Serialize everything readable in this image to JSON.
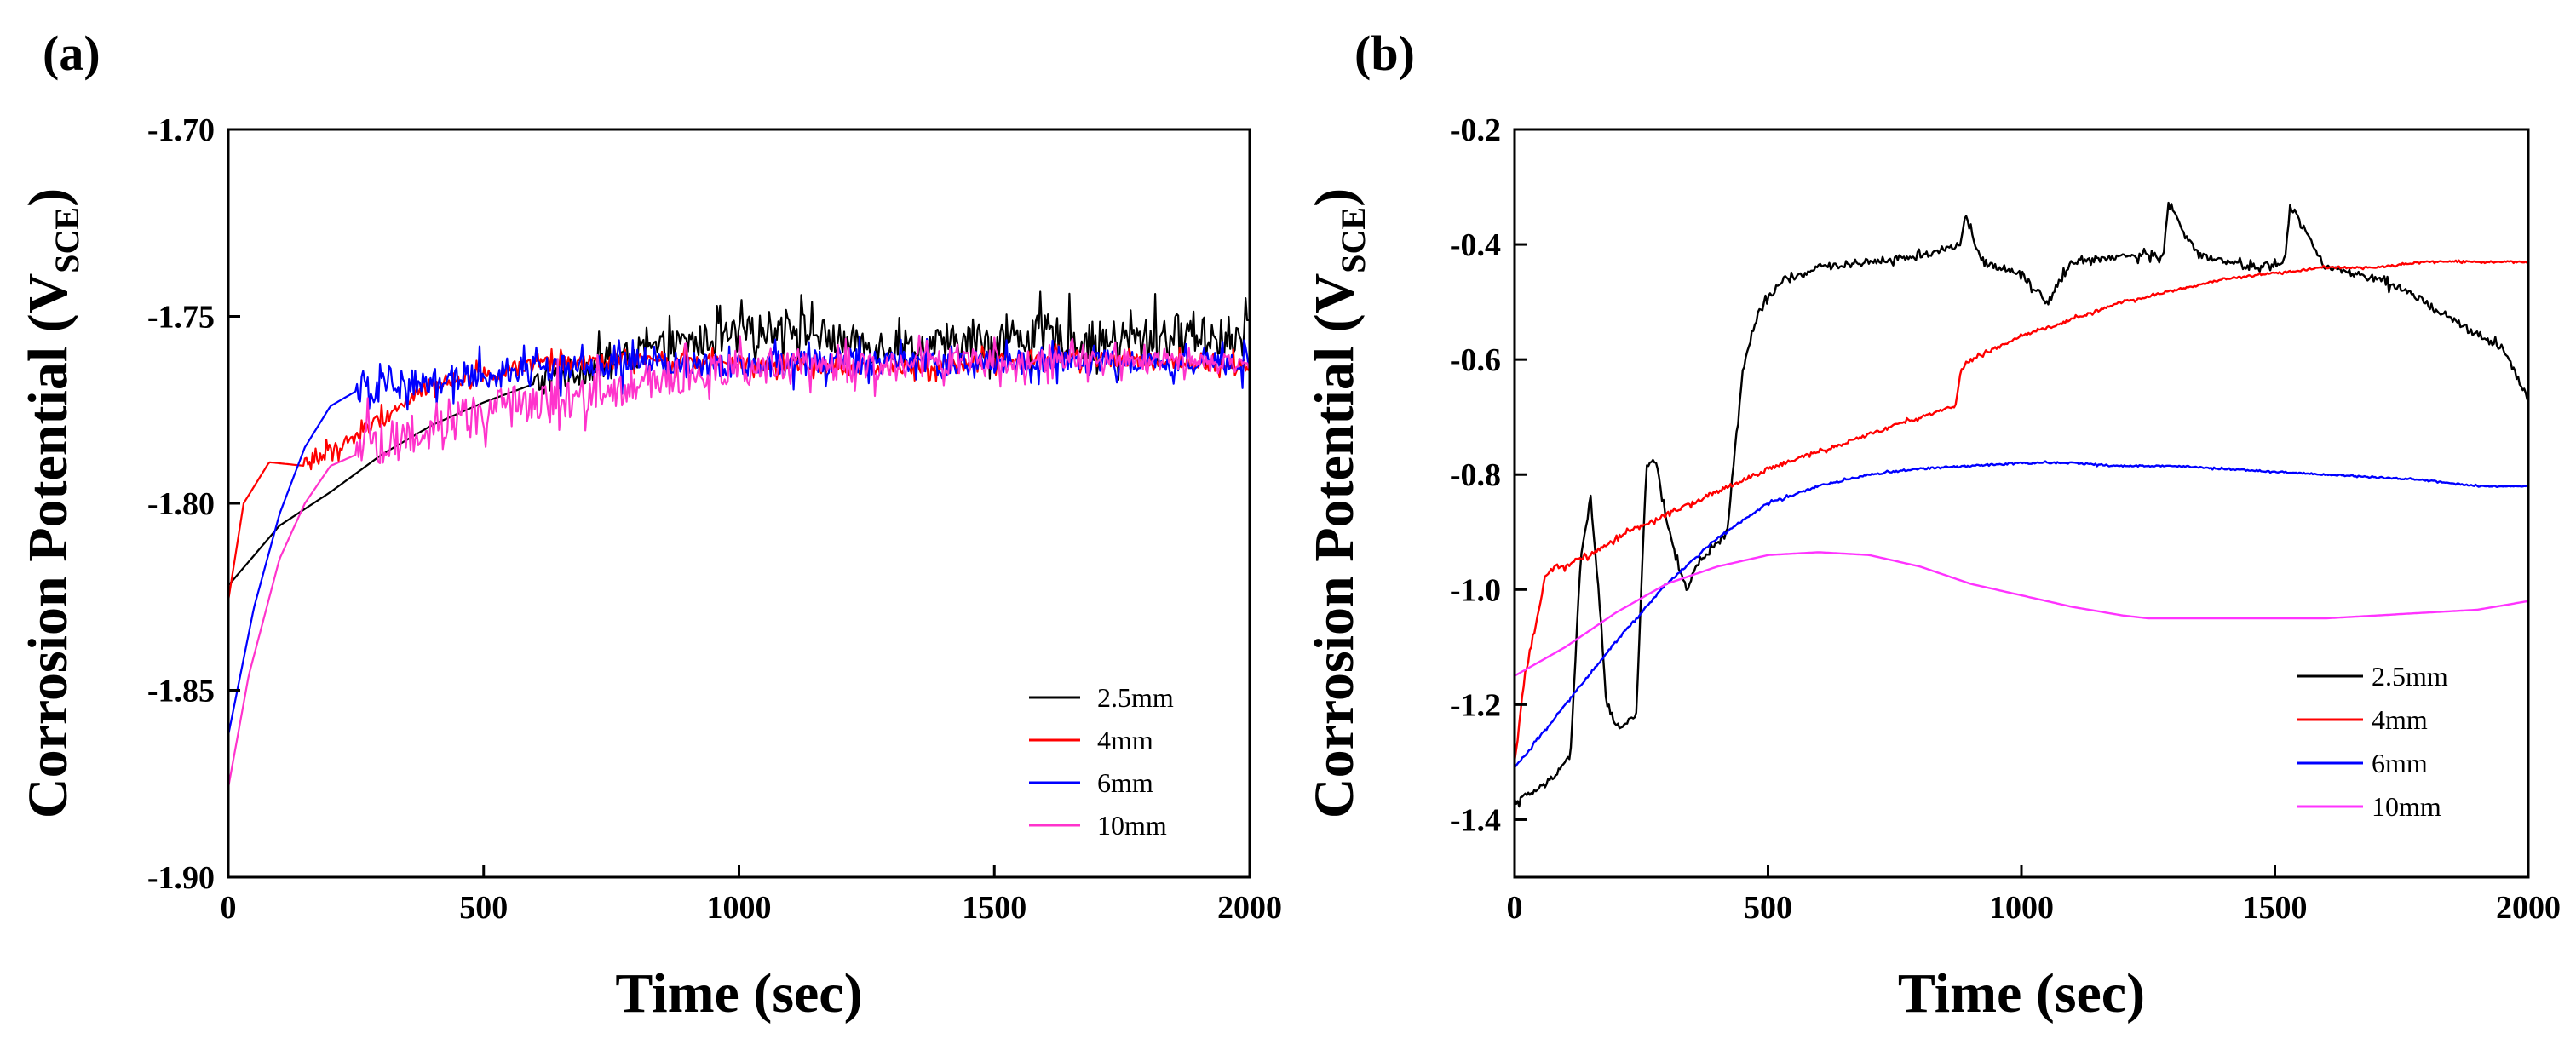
{
  "chart_data": [
    {
      "panel_label": "(a)",
      "type": "line",
      "title": "",
      "xlabel": "Time (sec)",
      "ylabel": "Corrosion Potential (V",
      "ylabel_subscript": "SCE",
      "ylabel_close": ")",
      "xlim": [
        0,
        2000
      ],
      "ylim": [
        -1.9,
        -1.7
      ],
      "x_ticks": [
        0,
        500,
        1000,
        1500,
        2000
      ],
      "x_tick_labels": [
        "0",
        "500",
        "1000",
        "1500",
        "2000"
      ],
      "y_ticks": [
        -1.7,
        -1.75,
        -1.8,
        -1.85,
        -1.9
      ],
      "y_tick_labels": [
        "-1.70",
        "-1.75",
        "-1.80",
        "-1.85",
        "-1.90"
      ],
      "grid": false,
      "legend_position": "bottom-right",
      "series": [
        {
          "name": "2.5mm",
          "color": "#000000",
          "noise": 0.003,
          "noise_start": 600,
          "noise_late": 0.006,
          "x": [
            0,
            100,
            200,
            300,
            400,
            500,
            600,
            700,
            800,
            900,
            1000,
            1100,
            1200,
            1300,
            1400,
            1500,
            1600,
            1700,
            1800,
            1900,
            2000
          ],
          "y": [
            -1.822,
            -1.806,
            -1.797,
            -1.787,
            -1.779,
            -1.773,
            -1.768,
            -1.764,
            -1.76,
            -1.757,
            -1.755,
            -1.752,
            -1.757,
            -1.758,
            -1.758,
            -1.756,
            -1.755,
            -1.757,
            -1.756,
            -1.754,
            -1.757
          ]
        },
        {
          "name": "4mm",
          "color": "#ff0000",
          "noise": 0.002,
          "noise_start": 150,
          "noise_late": 0.002,
          "x": [
            0,
            30,
            80,
            150,
            250,
            400,
            600,
            800,
            1000,
            1200,
            1400,
            1600,
            1800,
            2000
          ],
          "y": [
            -1.826,
            -1.8,
            -1.789,
            -1.79,
            -1.782,
            -1.768,
            -1.763,
            -1.762,
            -1.762,
            -1.764,
            -1.763,
            -1.761,
            -1.762,
            -1.763
          ]
        },
        {
          "name": "6mm",
          "color": "#0000ff",
          "noise": 0.004,
          "noise_start": 250,
          "noise_late": 0.003,
          "x": [
            0,
            50,
            100,
            150,
            200,
            250,
            400,
            600,
            800,
            1000,
            1200,
            1400,
            1600,
            1800,
            2000
          ],
          "y": [
            -1.862,
            -1.828,
            -1.803,
            -1.785,
            -1.774,
            -1.77,
            -1.767,
            -1.764,
            -1.763,
            -1.763,
            -1.762,
            -1.763,
            -1.762,
            -1.762,
            -1.763
          ]
        },
        {
          "name": "10mm",
          "color": "#ff33cc",
          "noise": 0.007,
          "noise_start": 250,
          "noise_late": 0.002,
          "x": [
            0,
            40,
            100,
            150,
            200,
            300,
            400,
            600,
            800,
            1000,
            1200,
            1400,
            1600,
            1800,
            2000
          ],
          "y": [
            -1.876,
            -1.846,
            -1.815,
            -1.8,
            -1.79,
            -1.784,
            -1.779,
            -1.773,
            -1.768,
            -1.764,
            -1.764,
            -1.762,
            -1.762,
            -1.762,
            -1.763
          ]
        }
      ]
    },
    {
      "panel_label": "(b)",
      "type": "line",
      "title": "",
      "xlabel": "Time (sec)",
      "ylabel": "Corrosion Potential (V",
      "ylabel_subscript": "SCE",
      "ylabel_close": ")",
      "xlim": [
        0,
        2000
      ],
      "ylim": [
        -1.5,
        -0.2
      ],
      "x_ticks": [
        0,
        500,
        1000,
        1500,
        2000
      ],
      "x_tick_labels": [
        "0",
        "500",
        "1000",
        "1500",
        "2000"
      ],
      "y_ticks": [
        -0.2,
        -0.4,
        -0.6,
        -0.8,
        -1.0,
        -1.2,
        -1.4
      ],
      "y_tick_labels": [
        "-0.2",
        "-0.4",
        "-0.6",
        "-0.8",
        "-1.0",
        "-1.2",
        "-1.4"
      ],
      "grid": false,
      "legend_position": "bottom-right",
      "series": [
        {
          "name": "2.5mm",
          "color": "#000000",
          "noise": 0.006,
          "noise_start": 0,
          "noise_late": 0.006,
          "x": [
            0,
            60,
            110,
            130,
            150,
            170,
            180,
            200,
            240,
            260,
            280,
            300,
            320,
            340,
            360,
            400,
            420,
            430,
            450,
            480,
            520,
            600,
            700,
            800,
            880,
            890,
            920,
            1000,
            1050,
            1100,
            1200,
            1280,
            1290,
            1350,
            1450,
            1520,
            1530,
            1600,
            1700,
            1800,
            1900,
            1950,
            2000
          ],
          "y": [
            -1.37,
            -1.34,
            -1.29,
            -0.95,
            -0.84,
            -1.05,
            -1.19,
            -1.24,
            -1.22,
            -0.78,
            -0.78,
            -0.88,
            -0.95,
            -1.0,
            -0.96,
            -0.92,
            -0.9,
            -0.8,
            -0.62,
            -0.52,
            -0.47,
            -0.44,
            -0.43,
            -0.42,
            -0.4,
            -0.35,
            -0.43,
            -0.45,
            -0.5,
            -0.43,
            -0.42,
            -0.42,
            -0.33,
            -0.42,
            -0.44,
            -0.43,
            -0.33,
            -0.44,
            -0.46,
            -0.5,
            -0.56,
            -0.58,
            -0.67
          ]
        },
        {
          "name": "4mm",
          "color": "#ff0000",
          "noise": 0.004,
          "noise_start": 0,
          "noise_late": 0.001,
          "x": [
            0,
            20,
            40,
            60,
            80,
            100,
            150,
            200,
            300,
            400,
            500,
            600,
            700,
            800,
            870,
            880,
            900,
            950,
            1000,
            1100,
            1200,
            1300,
            1400,
            1500,
            1600,
            1700,
            1800,
            1900,
            2000
          ],
          "y": [
            -1.3,
            -1.15,
            -1.07,
            -0.98,
            -0.96,
            -0.96,
            -0.94,
            -0.91,
            -0.87,
            -0.83,
            -0.79,
            -0.76,
            -0.73,
            -0.7,
            -0.68,
            -0.62,
            -0.6,
            -0.58,
            -0.56,
            -0.53,
            -0.5,
            -0.48,
            -0.46,
            -0.45,
            -0.44,
            -0.44,
            -0.43,
            -0.43,
            -0.43
          ]
        },
        {
          "name": "6mm",
          "color": "#0000ff",
          "noise": 0.002,
          "noise_start": 0,
          "noise_late": 0.001,
          "x": [
            0,
            100,
            200,
            300,
            400,
            500,
            600,
            700,
            800,
            900,
            1000,
            1100,
            1200,
            1300,
            1400,
            1500,
            1600,
            1700,
            1800,
            1900,
            2000
          ],
          "y": [
            -1.31,
            -1.2,
            -1.09,
            -0.99,
            -0.91,
            -0.85,
            -0.82,
            -0.8,
            -0.79,
            -0.785,
            -0.78,
            -0.78,
            -0.785,
            -0.785,
            -0.79,
            -0.795,
            -0.8,
            -0.805,
            -0.81,
            -0.82,
            -0.82
          ]
        },
        {
          "name": "10mm",
          "color": "#ff33ff",
          "noise": 0.0,
          "noise_start": 0,
          "noise_late": 0.0,
          "x": [
            0,
            100,
            200,
            300,
            400,
            500,
            600,
            700,
            800,
            900,
            1000,
            1100,
            1200,
            1250,
            1300,
            1400,
            1500,
            1600,
            1700,
            1800,
            1900,
            2000
          ],
          "y": [
            -1.15,
            -1.1,
            -1.04,
            -0.99,
            -0.96,
            -0.94,
            -0.935,
            -0.94,
            -0.96,
            -0.99,
            -1.01,
            -1.03,
            -1.045,
            -1.05,
            -1.05,
            -1.05,
            -1.05,
            -1.05,
            -1.045,
            -1.04,
            -1.035,
            -1.02
          ]
        }
      ]
    }
  ]
}
